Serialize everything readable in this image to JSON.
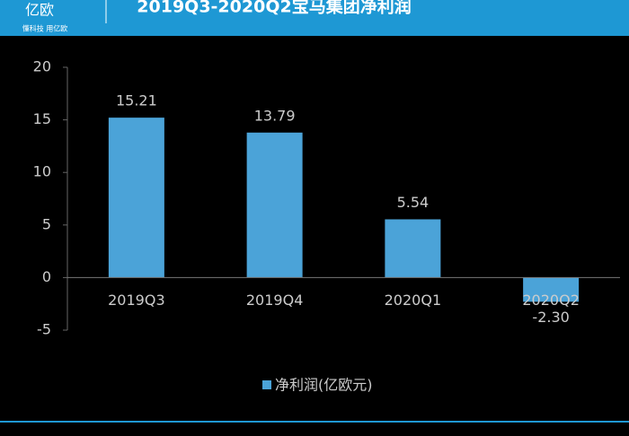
{
  "header": {
    "logo": "亿欧",
    "slogan": "懂科技 用亿欧"
  },
  "chart_data": {
    "type": "bar",
    "title": "2019Q3-2020Q2宝马集团净利润",
    "categories": [
      "2019Q3",
      "2019Q4",
      "2020Q1",
      "2020Q2"
    ],
    "series": [
      {
        "name": "净利润(亿欧元)",
        "color": "#4ba3d8",
        "values": [
          15.21,
          13.79,
          5.54,
          -2.3
        ],
        "value_labels": [
          "15.21",
          "13.79",
          "5.54",
          "-2.30"
        ]
      }
    ],
    "ylim": [
      -5,
      20
    ],
    "yticks": [
      -5,
      0,
      5,
      10,
      15,
      20
    ],
    "grid": false,
    "legend": "bottom"
  }
}
